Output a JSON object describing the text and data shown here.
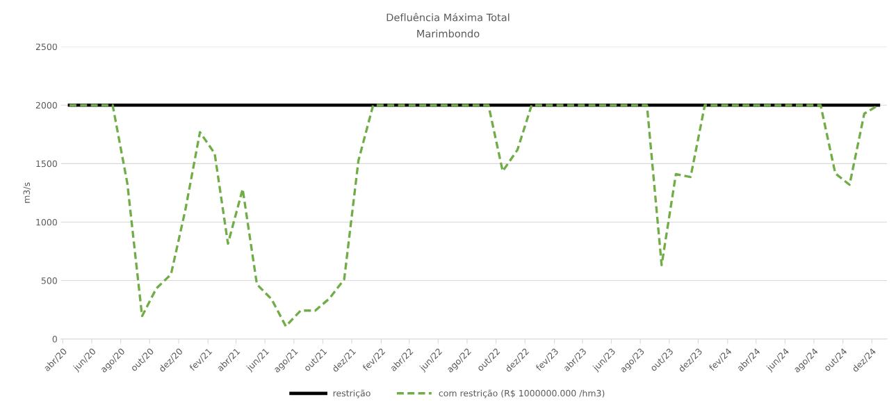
{
  "chart_data": {
    "type": "line",
    "title": "Defluência Máxima Total",
    "subtitle": "Marimbondo",
    "ylabel": "m3/s",
    "x": [
      "2020-04-15",
      "2020-05-15",
      "2020-06-15",
      "2020-07-15",
      "2020-08-15",
      "2020-09-15",
      "2020-10-15",
      "2020-11-15",
      "2020-12-15",
      "2021-01-15",
      "2021-02-15",
      "2021-03-15",
      "2021-04-15",
      "2021-05-15",
      "2021-06-15",
      "2021-07-15",
      "2021-08-15",
      "2021-09-15",
      "2021-10-15",
      "2021-11-15",
      "2021-12-15",
      "2022-01-15",
      "2022-02-15",
      "2022-03-15",
      "2022-04-15",
      "2022-05-15",
      "2022-06-15",
      "2022-07-15",
      "2022-08-15",
      "2022-09-15",
      "2022-10-15",
      "2022-11-15",
      "2022-12-15",
      "2023-01-15",
      "2023-02-15",
      "2023-03-15",
      "2023-04-15",
      "2023-05-15",
      "2023-06-15",
      "2023-07-15",
      "2023-08-15",
      "2023-09-15",
      "2023-10-15",
      "2023-11-15",
      "2023-12-15",
      "2024-01-15",
      "2024-02-15",
      "2024-03-15",
      "2024-04-15",
      "2024-05-15",
      "2024-06-15",
      "2024-07-15",
      "2024-08-15",
      "2024-09-15",
      "2024-10-15",
      "2024-11-15",
      "2024-12-15"
    ],
    "series": [
      {
        "name": "restrição",
        "color": "#000000",
        "line_style": "solid",
        "values": [
          2000,
          2000,
          2000,
          2000,
          2000,
          2000,
          2000,
          2000,
          2000,
          2000,
          2000,
          2000,
          2000,
          2000,
          2000,
          2000,
          2000,
          2000,
          2000,
          2000,
          2000,
          2000,
          2000,
          2000,
          2000,
          2000,
          2000,
          2000,
          2000,
          2000,
          2000,
          2000,
          2000,
          2000,
          2000,
          2000,
          2000,
          2000,
          2000,
          2000,
          2000,
          2000,
          2000,
          2000,
          2000,
          2000,
          2000,
          2000,
          2000,
          2000,
          2000,
          2000,
          2000,
          2000,
          2000,
          2000,
          2000
        ]
      },
      {
        "name": "com restrição (R$ 1000000.000 /hm3)",
        "color": "#70ad47",
        "line_style": "dashed",
        "values": [
          2000,
          2000,
          2000,
          2000,
          1330,
          196,
          432,
          553,
          1100,
          1769,
          1587,
          815,
          1283,
          468,
          340,
          109,
          243,
          243,
          347,
          511,
          1526,
          2000,
          2000,
          2000,
          2000,
          2000,
          2000,
          2000,
          2000,
          2000,
          1435,
          1617,
          2000,
          2000,
          2000,
          2000,
          2000,
          2000,
          2000,
          2000,
          2000,
          632,
          1410,
          1386,
          2000,
          2000,
          2000,
          2000,
          2000,
          2000,
          2000,
          2000,
          2000,
          1416,
          1319,
          1927,
          2000
        ]
      }
    ],
    "xlim": [
      "2020-03-28",
      "2025-01-02"
    ],
    "xticks": [
      {
        "value": "2020-04-01",
        "label": "abr/20"
      },
      {
        "value": "2020-06-01",
        "label": "jun/20"
      },
      {
        "value": "2020-08-01",
        "label": "ago/20"
      },
      {
        "value": "2020-10-01",
        "label": "out/20"
      },
      {
        "value": "2020-12-01",
        "label": "dez/20"
      },
      {
        "value": "2021-02-01",
        "label": "fev/21"
      },
      {
        "value": "2021-04-01",
        "label": "abr/21"
      },
      {
        "value": "2021-06-01",
        "label": "jun/21"
      },
      {
        "value": "2021-08-01",
        "label": "ago/21"
      },
      {
        "value": "2021-10-01",
        "label": "out/21"
      },
      {
        "value": "2021-12-01",
        "label": "dez/21"
      },
      {
        "value": "2022-02-01",
        "label": "fev/22"
      },
      {
        "value": "2022-04-01",
        "label": "abr/22"
      },
      {
        "value": "2022-06-01",
        "label": "jun/22"
      },
      {
        "value": "2022-08-01",
        "label": "ago/22"
      },
      {
        "value": "2022-10-01",
        "label": "out/22"
      },
      {
        "value": "2022-12-01",
        "label": "dez/22"
      },
      {
        "value": "2023-02-01",
        "label": "fev/23"
      },
      {
        "value": "2023-04-01",
        "label": "abr/23"
      },
      {
        "value": "2023-06-01",
        "label": "jun/23"
      },
      {
        "value": "2023-08-01",
        "label": "ago/23"
      },
      {
        "value": "2023-10-01",
        "label": "out/23"
      },
      {
        "value": "2023-12-01",
        "label": "dez/23"
      },
      {
        "value": "2024-02-01",
        "label": "fev/24"
      },
      {
        "value": "2024-04-01",
        "label": "abr/24"
      },
      {
        "value": "2024-06-01",
        "label": "jun/24"
      },
      {
        "value": "2024-08-01",
        "label": "ago/24"
      },
      {
        "value": "2024-10-01",
        "label": "out/24"
      },
      {
        "value": "2024-12-01",
        "label": "dez/24"
      }
    ],
    "ylim": [
      0,
      2500
    ],
    "yticks": [
      0,
      500,
      1000,
      1500,
      2000,
      2500
    ],
    "grid": "y",
    "legend": "bottom",
    "marker": "none"
  }
}
